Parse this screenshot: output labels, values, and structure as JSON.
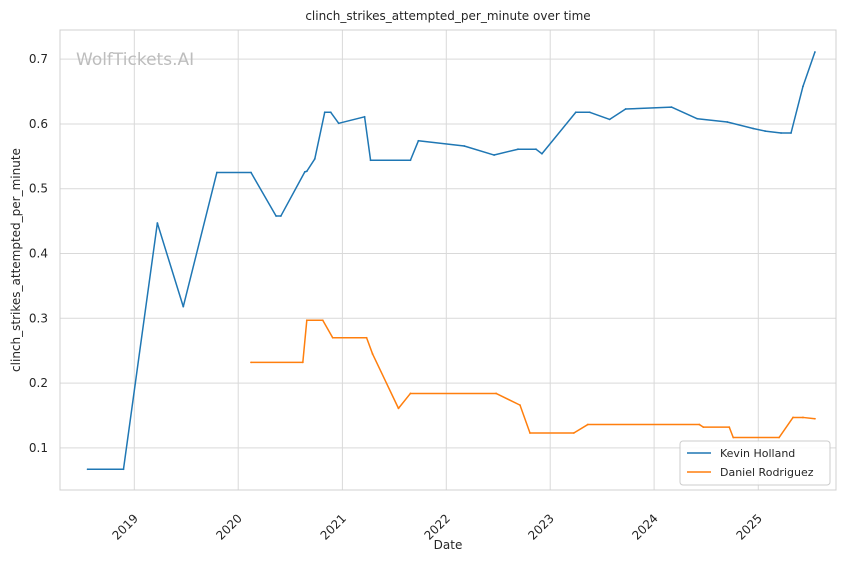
{
  "chart_data": {
    "type": "line",
    "title": "clinch_strikes_attempted_per_minute over time",
    "xlabel": "Date",
    "ylabel": "clinch_strikes_attempted_per_minute",
    "watermark": "WolfTickets.AI",
    "x_ticks": [
      "2019",
      "2020",
      "2021",
      "2022",
      "2023",
      "2024",
      "2025"
    ],
    "y_ticks": [
      "0.1",
      "0.2",
      "0.3",
      "0.4",
      "0.5",
      "0.6",
      "0.7"
    ],
    "xlim": [
      "2018-04-15",
      "2025-10-01"
    ],
    "ylim": [
      0.035,
      0.745
    ],
    "grid": true,
    "legend_position": "bottom-right",
    "series": [
      {
        "name": "Kevin Holland",
        "color": "#1f77b4",
        "points": [
          [
            "2018-07-21",
            0.067
          ],
          [
            "2018-11-24",
            0.067
          ],
          [
            "2019-03-23",
            0.447
          ],
          [
            "2019-06-22",
            0.318
          ],
          [
            "2019-10-18",
            0.525
          ],
          [
            "2020-02-15",
            0.525
          ],
          [
            "2020-05-13",
            0.458
          ],
          [
            "2020-05-30",
            0.458
          ],
          [
            "2020-08-22",
            0.526
          ],
          [
            "2020-08-29",
            0.527
          ],
          [
            "2020-09-26",
            0.546
          ],
          [
            "2020-10-31",
            0.618
          ],
          [
            "2020-11-21",
            0.618
          ],
          [
            "2020-12-19",
            0.601
          ],
          [
            "2021-03-20",
            0.611
          ],
          [
            "2021-04-10",
            0.544
          ],
          [
            "2021-08-28",
            0.544
          ],
          [
            "2021-09-25",
            0.574
          ],
          [
            "2022-03-05",
            0.566
          ],
          [
            "2022-06-18",
            0.552
          ],
          [
            "2022-09-10",
            0.561
          ],
          [
            "2022-11-12",
            0.561
          ],
          [
            "2022-12-03",
            0.554
          ],
          [
            "2023-04-01",
            0.618
          ],
          [
            "2023-05-20",
            0.618
          ],
          [
            "2023-07-29",
            0.607
          ],
          [
            "2023-09-23",
            0.623
          ],
          [
            "2024-03-02",
            0.626
          ],
          [
            "2024-06-01",
            0.608
          ],
          [
            "2024-09-14",
            0.603
          ],
          [
            "2024-12-14",
            0.593
          ],
          [
            "2025-01-25",
            0.589
          ],
          [
            "2025-03-22",
            0.586
          ],
          [
            "2025-04-26",
            0.586
          ],
          [
            "2025-06-07",
            0.658
          ],
          [
            "2025-07-19",
            0.711
          ]
        ]
      },
      {
        "name": "Daniel Rodriguez",
        "color": "#ff7f0e",
        "points": [
          [
            "2020-02-15",
            0.232
          ],
          [
            "2020-08-15",
            0.232
          ],
          [
            "2020-08-29",
            0.297
          ],
          [
            "2020-10-24",
            0.297
          ],
          [
            "2020-11-28",
            0.27
          ],
          [
            "2021-03-27",
            0.27
          ],
          [
            "2021-04-17",
            0.245
          ],
          [
            "2021-07-17",
            0.161
          ],
          [
            "2021-08-28",
            0.184
          ],
          [
            "2022-06-25",
            0.184
          ],
          [
            "2022-09-17",
            0.166
          ],
          [
            "2022-10-22",
            0.123
          ],
          [
            "2023-03-25",
            0.123
          ],
          [
            "2023-05-13",
            0.136
          ],
          [
            "2024-06-08",
            0.136
          ],
          [
            "2024-06-22",
            0.132
          ],
          [
            "2024-09-21",
            0.132
          ],
          [
            "2024-10-05",
            0.116
          ],
          [
            "2025-03-15",
            0.116
          ],
          [
            "2025-05-03",
            0.147
          ],
          [
            "2025-06-07",
            0.147
          ],
          [
            "2025-07-19",
            0.145
          ]
        ]
      }
    ]
  }
}
